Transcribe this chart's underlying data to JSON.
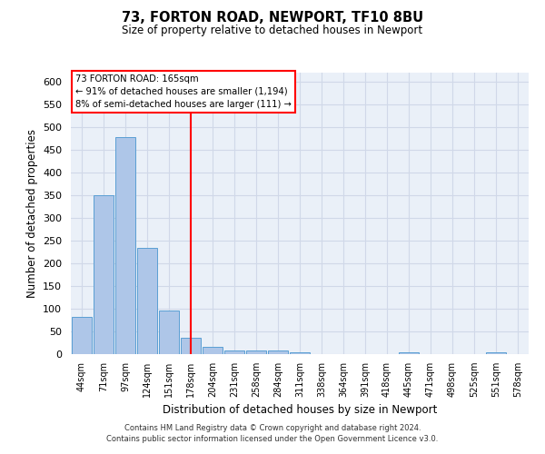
{
  "title": "73, FORTON ROAD, NEWPORT, TF10 8BU",
  "subtitle": "Size of property relative to detached houses in Newport",
  "xlabel": "Distribution of detached houses by size in Newport",
  "ylabel": "Number of detached properties",
  "footer_line1": "Contains HM Land Registry data © Crown copyright and database right 2024.",
  "footer_line2": "Contains public sector information licensed under the Open Government Licence v3.0.",
  "annotation_line1": "73 FORTON ROAD: 165sqm",
  "annotation_line2": "← 91% of detached houses are smaller (1,194)",
  "annotation_line3": "8% of semi-detached houses are larger (111) →",
  "bar_labels": [
    "44sqm",
    "71sqm",
    "97sqm",
    "124sqm",
    "151sqm",
    "178sqm",
    "204sqm",
    "231sqm",
    "258sqm",
    "284sqm",
    "311sqm",
    "338sqm",
    "364sqm",
    "391sqm",
    "418sqm",
    "445sqm",
    "471sqm",
    "498sqm",
    "525sqm",
    "551sqm",
    "578sqm"
  ],
  "bar_values": [
    83,
    350,
    478,
    235,
    97,
    37,
    17,
    8,
    8,
    8,
    5,
    0,
    0,
    0,
    0,
    5,
    0,
    0,
    0,
    5,
    0
  ],
  "bar_color": "#aec6e8",
  "bar_edge_color": "#5a9fd4",
  "red_line_x": 5.0,
  "background_color": "#ffffff",
  "grid_color": "#d0d8e8",
  "ylim": [
    0,
    620
  ],
  "yticks": [
    0,
    50,
    100,
    150,
    200,
    250,
    300,
    350,
    400,
    450,
    500,
    550,
    600
  ]
}
